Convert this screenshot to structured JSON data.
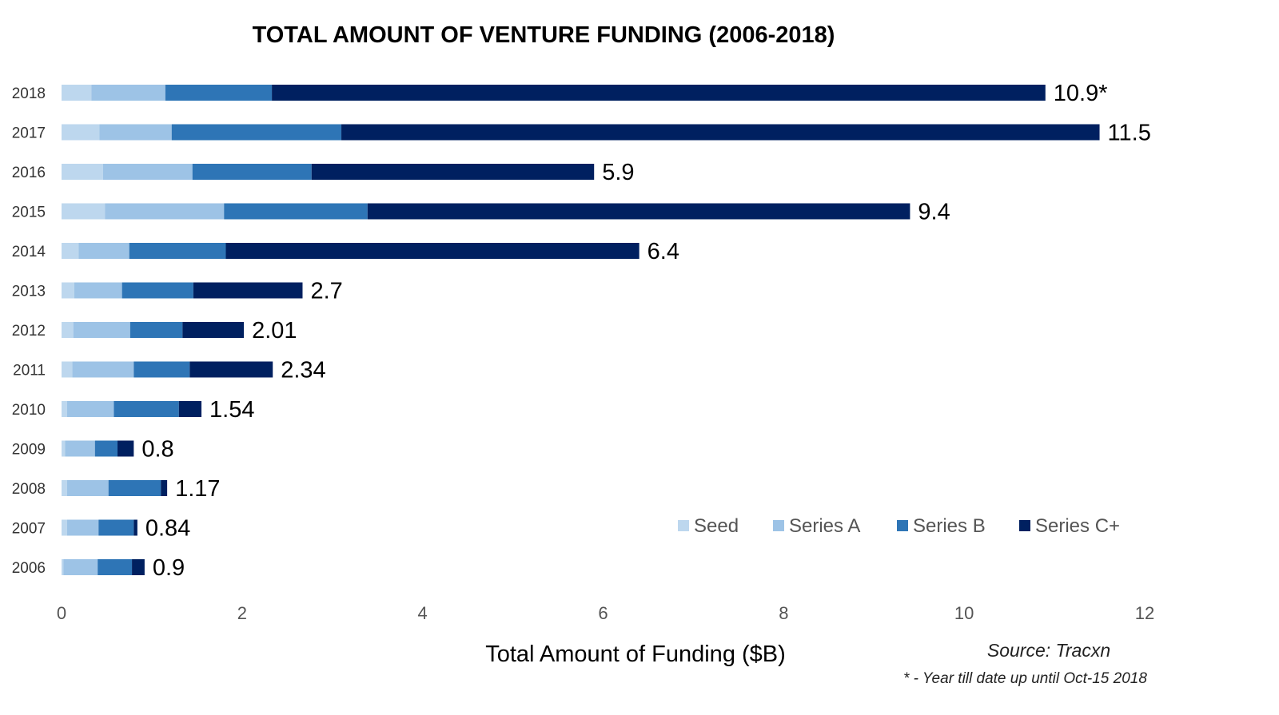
{
  "chart_data": {
    "type": "bar",
    "orientation": "horizontal",
    "stacked": true,
    "title": "TOTAL AMOUNT OF VENTURE FUNDING (2006-2018)",
    "xlabel": "Total Amount of Funding ($B)",
    "ylabel": "",
    "xlim": [
      0,
      12
    ],
    "xticks": [
      "0",
      "2",
      "4",
      "6",
      "8",
      "10",
      "12"
    ],
    "grid": false,
    "legend_position": "bottom-right",
    "categories": [
      "2018",
      "2017",
      "2016",
      "2015",
      "2014",
      "2013",
      "2012",
      "2011",
      "2010",
      "2009",
      "2008",
      "2007",
      "2006"
    ],
    "series": [
      {
        "name": "Seed",
        "color": "#bdd7ee",
        "values": [
          0.33,
          0.42,
          0.46,
          0.48,
          0.19,
          0.14,
          0.13,
          0.12,
          0.06,
          0.04,
          0.06,
          0.06,
          0.02
        ]
      },
      {
        "name": "Series A",
        "color": "#9dc3e6",
        "values": [
          0.82,
          0.8,
          0.99,
          1.32,
          0.56,
          0.53,
          0.63,
          0.68,
          0.52,
          0.33,
          0.46,
          0.35,
          0.38
        ]
      },
      {
        "name": "Series B",
        "color": "#2e75b6",
        "values": [
          1.18,
          1.88,
          1.32,
          1.59,
          1.07,
          0.79,
          0.58,
          0.62,
          0.72,
          0.25,
          0.58,
          0.39,
          0.38
        ]
      },
      {
        "name": "Series C+",
        "color": "#002060",
        "values": [
          8.57,
          8.4,
          3.13,
          6.01,
          4.58,
          1.21,
          0.68,
          0.92,
          0.25,
          0.18,
          0.07,
          0.04,
          0.14
        ]
      }
    ],
    "totals": [
      "10.9*",
      "11.5",
      "5.9",
      "9.4",
      "6.4",
      "2.7",
      "2.01",
      "2.34",
      "1.54",
      "0.8",
      "1.17",
      "0.84",
      "0.9"
    ],
    "annotations": {
      "source": "Source:  Tracxn",
      "footnote": "*  - Year till date up until Oct-15 2018"
    }
  }
}
